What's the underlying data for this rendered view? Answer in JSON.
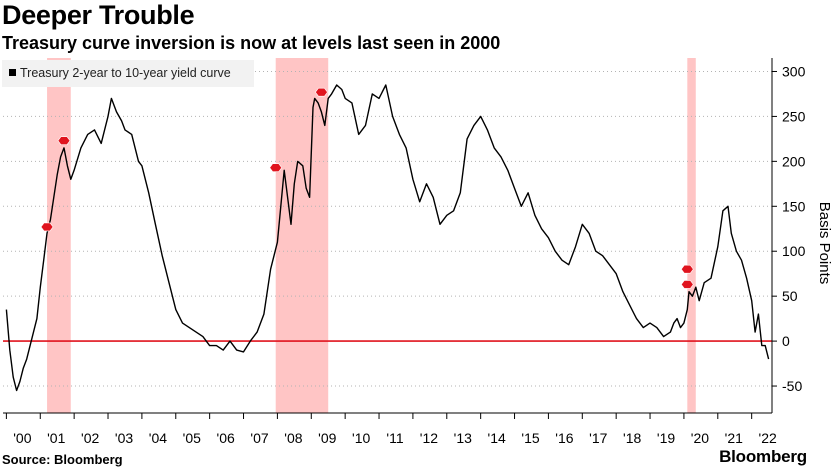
{
  "header": {
    "title": "Deeper Trouble",
    "subtitle": "Treasury curve inversion is now at levels last seen in 2000"
  },
  "footer": {
    "source": "Source: Bloomberg",
    "brand": "Bloomberg"
  },
  "colors": {
    "line": "#000000",
    "zero_line": "#e0141e",
    "recession_band": "#ffb6b6",
    "marker": "#e0141e",
    "grid": "#b3b3b3",
    "legend_bg": "#f2f2f2"
  },
  "chart_data": {
    "type": "line",
    "title": "Deeper Trouble",
    "subtitle": "Treasury curve inversion is now at levels last seen in 2000",
    "ylabel": "Basis Points",
    "y_axis_side": "right",
    "ylim": [
      -80,
      315
    ],
    "xlim": [
      1999.9,
      2022.6
    ],
    "yticks": [
      -50,
      0,
      50,
      100,
      150,
      200,
      250,
      300
    ],
    "ytick_labels": [
      "-50",
      "0",
      "50",
      "100",
      "150",
      "200",
      "250",
      "300"
    ],
    "xticks": [
      2000,
      2001,
      2002,
      2003,
      2004,
      2005,
      2006,
      2007,
      2008,
      2009,
      2010,
      2011,
      2012,
      2013,
      2014,
      2015,
      2016,
      2017,
      2018,
      2019,
      2020,
      2021,
      2022
    ],
    "xtick_labels": [
      "'00",
      "'01",
      "'02",
      "'03",
      "'04",
      "'05",
      "'06",
      "'07",
      "'08",
      "'09",
      "'10",
      "'11",
      "'12",
      "'13",
      "'14",
      "'15",
      "'16",
      "'17",
      "'18",
      "'19",
      "'20",
      "'21",
      "'22"
    ],
    "grid": "horizontal dotted",
    "legend": {
      "position": "top-left",
      "entries": [
        "Treasury 2-year to 10-year yield curve"
      ]
    },
    "reference_line": {
      "y": 0
    },
    "recessions": [
      [
        2001.2,
        2001.9
      ],
      [
        2007.95,
        2009.5
      ],
      [
        2020.1,
        2020.35
      ]
    ],
    "series": [
      {
        "name": "Treasury 2-year to 10-year yield curve",
        "x": [
          2000.0,
          2000.1,
          2000.2,
          2000.3,
          2000.4,
          2000.5,
          2000.6,
          2000.7,
          2000.8,
          2000.9,
          2001.0,
          2001.1,
          2001.2,
          2001.3,
          2001.4,
          2001.5,
          2001.6,
          2001.7,
          2001.8,
          2001.9,
          2002.0,
          2002.2,
          2002.4,
          2002.6,
          2002.8,
          2003.0,
          2003.1,
          2003.25,
          2003.4,
          2003.5,
          2003.7,
          2003.9,
          2004.0,
          2004.2,
          2004.4,
          2004.6,
          2004.8,
          2005.0,
          2005.2,
          2005.4,
          2005.6,
          2005.8,
          2006.0,
          2006.2,
          2006.4,
          2006.6,
          2006.8,
          2007.0,
          2007.2,
          2007.4,
          2007.6,
          2007.8,
          2008.0,
          2008.1,
          2008.2,
          2008.3,
          2008.4,
          2008.5,
          2008.6,
          2008.75,
          2008.85,
          2008.95,
          2009.05,
          2009.1,
          2009.2,
          2009.3,
          2009.4,
          2009.5,
          2009.6,
          2009.75,
          2009.9,
          2010.0,
          2010.2,
          2010.4,
          2010.6,
          2010.8,
          2011.0,
          2011.2,
          2011.4,
          2011.6,
          2011.8,
          2012.0,
          2012.2,
          2012.4,
          2012.6,
          2012.8,
          2013.0,
          2013.2,
          2013.4,
          2013.6,
          2013.8,
          2014.0,
          2014.2,
          2014.4,
          2014.6,
          2014.8,
          2015.0,
          2015.2,
          2015.4,
          2015.6,
          2015.8,
          2016.0,
          2016.2,
          2016.4,
          2016.6,
          2016.8,
          2017.0,
          2017.2,
          2017.4,
          2017.6,
          2017.8,
          2018.0,
          2018.2,
          2018.4,
          2018.6,
          2018.8,
          2019.0,
          2019.2,
          2019.4,
          2019.6,
          2019.7,
          2019.8,
          2019.9,
          2020.0,
          2020.1,
          2020.15,
          2020.25,
          2020.35,
          2020.45,
          2020.6,
          2020.8,
          2021.0,
          2021.15,
          2021.3,
          2021.4,
          2021.55,
          2021.7,
          2021.85,
          2022.0,
          2022.1,
          2022.2,
          2022.3,
          2022.4,
          2022.5
        ],
        "values": [
          35,
          -10,
          -40,
          -55,
          -45,
          -30,
          -20,
          -5,
          10,
          25,
          60,
          90,
          120,
          135,
          160,
          185,
          205,
          215,
          195,
          180,
          190,
          215,
          230,
          235,
          220,
          250,
          270,
          255,
          245,
          235,
          230,
          200,
          195,
          165,
          130,
          95,
          65,
          35,
          20,
          15,
          10,
          5,
          -5,
          -5,
          -10,
          0,
          -10,
          -12,
          0,
          10,
          30,
          80,
          110,
          150,
          190,
          160,
          130,
          175,
          200,
          195,
          170,
          160,
          260,
          270,
          265,
          255,
          240,
          270,
          275,
          285,
          280,
          270,
          265,
          230,
          240,
          275,
          270,
          285,
          250,
          230,
          215,
          180,
          155,
          175,
          160,
          130,
          140,
          145,
          165,
          225,
          240,
          250,
          235,
          215,
          205,
          190,
          170,
          150,
          165,
          140,
          125,
          115,
          100,
          90,
          85,
          105,
          130,
          120,
          100,
          95,
          85,
          75,
          55,
          40,
          25,
          15,
          20,
          15,
          5,
          10,
          20,
          25,
          15,
          20,
          35,
          55,
          50,
          60,
          45,
          65,
          70,
          105,
          145,
          150,
          120,
          100,
          90,
          70,
          45,
          10,
          30,
          -5,
          -5,
          -20
        ],
        "color": "#000000"
      }
    ],
    "annotations": [
      {
        "type": "marker",
        "x": 2001.2,
        "y": 127
      },
      {
        "type": "marker",
        "x": 2001.7,
        "y": 223
      },
      {
        "type": "marker",
        "x": 2007.95,
        "y": 193
      },
      {
        "type": "marker",
        "x": 2009.3,
        "y": 277
      },
      {
        "type": "marker",
        "x": 2020.1,
        "y": 80
      },
      {
        "type": "marker",
        "x": 2020.1,
        "y": 63
      }
    ]
  }
}
